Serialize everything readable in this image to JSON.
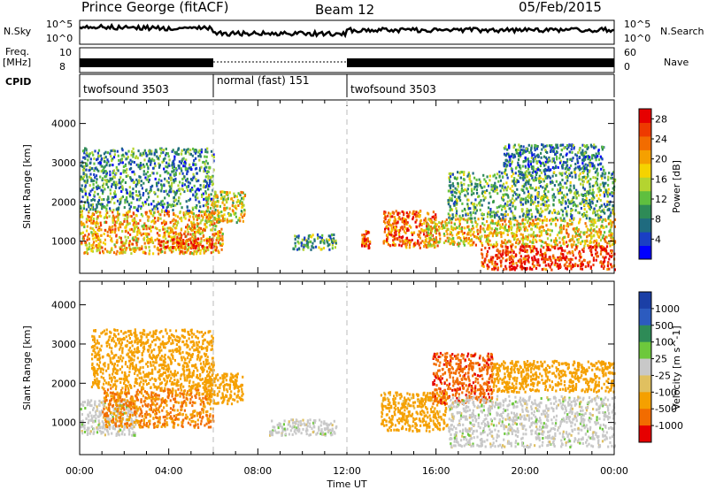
{
  "header": {
    "site": "Prince George (fitACF)",
    "beam": "Beam 12",
    "date": "05/Feb/2015"
  },
  "labels": {
    "nsky": "N.Sky",
    "nsearch": "N.Search",
    "freq": "Freq.",
    "freq_unit": "[MHz]",
    "nave": "Nave",
    "cpid": "CPID"
  },
  "sky_ticks": [
    "10^5",
    "10^0"
  ],
  "search_ticks": [
    "10^5",
    "10^0"
  ],
  "freq_ticks": [
    "10",
    "8"
  ],
  "nave_ticks": [
    "60",
    "0"
  ],
  "cpid_segments": [
    {
      "label": "twofsound 3503",
      "start": 0,
      "end": 6
    },
    {
      "label": "normal (fast) 151",
      "start": 6,
      "end": 12
    },
    {
      "label": "twofsound 3503",
      "start": 12,
      "end": 24
    }
  ],
  "colors": {
    "power": [
      "#0000ff",
      "#1a3fc4",
      "#1f6b7f",
      "#2e8b57",
      "#5fbf3f",
      "#b4d430",
      "#f5d300",
      "#f5a000",
      "#f26c00",
      "#ee3a00",
      "#e60000"
    ],
    "velocity": [
      "#1b3fa6",
      "#2c5bbf",
      "#2e8b57",
      "#6dc83c",
      "#c8c8c8",
      "#e0c060",
      "#f5a000",
      "#f26c00",
      "#e60000"
    ]
  },
  "chart_data": [
    {
      "type": "heatmap",
      "panel": "power",
      "xlabel": "Time UT",
      "ylabel": "Slant Range [km]",
      "xlim": [
        0,
        24
      ],
      "ylim": [
        180,
        4600
      ],
      "xticks": [
        "00:00",
        "04:00",
        "08:00",
        "12:00",
        "16:00",
        "20:00",
        "00:00"
      ],
      "yticks": [
        1000,
        2000,
        3000,
        4000
      ],
      "colorbar": {
        "label": "Power [dB]",
        "ticks": [
          4,
          8,
          12,
          16,
          20,
          24,
          28
        ],
        "range": [
          0,
          30
        ]
      },
      "echo_regions": [
        {
          "t0": 0.0,
          "t1": 6.4,
          "r0": 700,
          "r1": 1800,
          "value": 20
        },
        {
          "t0": 3.5,
          "t1": 6.0,
          "r0": 850,
          "r1": 1100,
          "value": 27
        },
        {
          "t0": 0.0,
          "t1": 6.0,
          "r0": 1800,
          "r1": 3400,
          "value": 9
        },
        {
          "t0": 5.6,
          "t1": 7.4,
          "r0": 1500,
          "r1": 2300,
          "value": 17
        },
        {
          "t0": 9.5,
          "t1": 11.5,
          "r0": 800,
          "r1": 1200,
          "value": 10
        },
        {
          "t0": 12.6,
          "t1": 13.0,
          "r0": 850,
          "r1": 1300,
          "value": 26
        },
        {
          "t0": 13.6,
          "t1": 16.0,
          "r0": 850,
          "r1": 1800,
          "value": 24
        },
        {
          "t0": 15.5,
          "t1": 24.0,
          "r0": 900,
          "r1": 1600,
          "value": 18
        },
        {
          "t0": 18.0,
          "t1": 24.0,
          "r0": 300,
          "r1": 900,
          "value": 27
        },
        {
          "t0": 16.5,
          "t1": 24.0,
          "r0": 1600,
          "r1": 2800,
          "value": 11
        },
        {
          "t0": 19.0,
          "t1": 23.5,
          "r0": 2800,
          "r1": 3500,
          "value": 8
        }
      ]
    },
    {
      "type": "heatmap",
      "panel": "velocity",
      "xlabel": "Time UT",
      "ylabel": "Slant Range [km]",
      "xlim": [
        0,
        24
      ],
      "ylim": [
        180,
        4600
      ],
      "xticks": [
        "00:00",
        "04:00",
        "08:00",
        "12:00",
        "16:00",
        "20:00",
        "00:00"
      ],
      "yticks": [
        1000,
        2000,
        3000,
        4000
      ],
      "colorbar": {
        "label": "Velocity [m s^-1]",
        "ticks": [
          1000,
          500,
          100,
          25,
          -25,
          -100,
          -500,
          -1000
        ]
      },
      "echo_regions": [
        {
          "t0": 0.0,
          "t1": 2.5,
          "r0": 700,
          "r1": 1600,
          "value": 0
        },
        {
          "t0": 1.0,
          "t1": 6.0,
          "r0": 900,
          "r1": 1900,
          "value": -300
        },
        {
          "t0": 0.5,
          "t1": 6.0,
          "r0": 1900,
          "r1": 3400,
          "value": -200
        },
        {
          "t0": 5.6,
          "t1": 7.3,
          "r0": 1500,
          "r1": 2300,
          "value": -150
        },
        {
          "t0": 8.5,
          "t1": 11.5,
          "r0": 700,
          "r1": 1100,
          "value": 0
        },
        {
          "t0": 13.5,
          "t1": 16.5,
          "r0": 800,
          "r1": 1800,
          "value": -100
        },
        {
          "t0": 15.8,
          "t1": 18.5,
          "r0": 1500,
          "r1": 2800,
          "value": -600
        },
        {
          "t0": 16.5,
          "t1": 24.0,
          "r0": 400,
          "r1": 1700,
          "value": 0
        },
        {
          "t0": 18.5,
          "t1": 24.0,
          "r0": 1800,
          "r1": 2600,
          "value": -120
        }
      ]
    }
  ]
}
